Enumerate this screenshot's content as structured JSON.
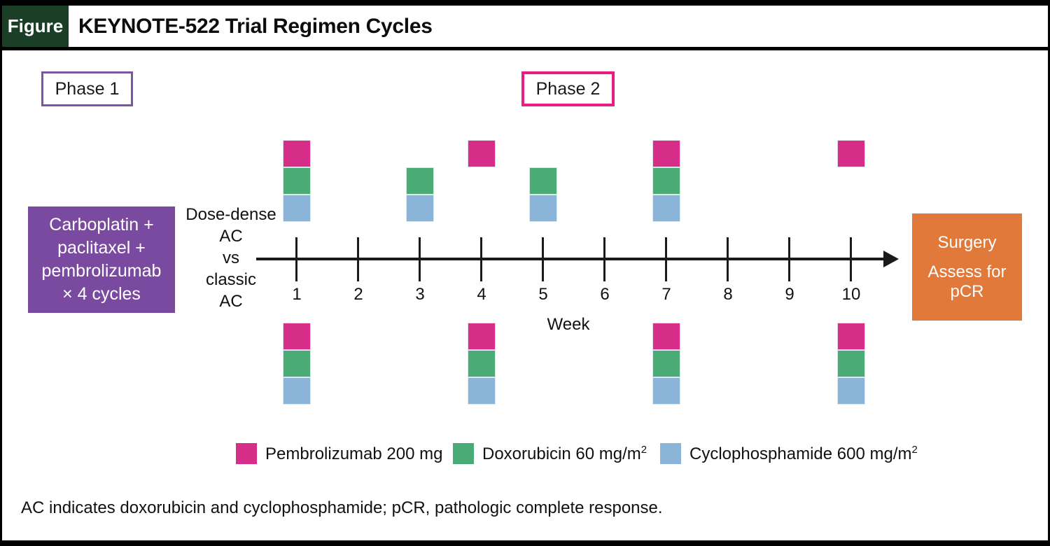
{
  "header": {
    "figure_label": "Figure",
    "title": "KEYNOTE-522 Trial Regimen Cycles"
  },
  "phases": {
    "phase1": "Phase 1",
    "phase2": "Phase 2"
  },
  "pre_phase_box": {
    "lines": [
      "Carboplatin +",
      "paclitaxel +",
      "pembrolizumab",
      "× 4 cycles"
    ]
  },
  "axis_annotation": {
    "lines": [
      "Dose-dense",
      "AC",
      "vs",
      "classic",
      "AC"
    ]
  },
  "timeline": {
    "weeks": [
      "1",
      "2",
      "3",
      "4",
      "5",
      "6",
      "7",
      "8",
      "9",
      "10"
    ],
    "axis_title": "Week"
  },
  "schedule": {
    "drug_order": [
      "pembrolizumab",
      "doxorubicin",
      "cyclophosphamide"
    ],
    "dose_dense": [
      {
        "week": 1,
        "drugs": [
          "pembrolizumab",
          "doxorubicin",
          "cyclophosphamide"
        ]
      },
      {
        "week": 3,
        "drugs": [
          "doxorubicin",
          "cyclophosphamide"
        ]
      },
      {
        "week": 4,
        "drugs": [
          "pembrolizumab"
        ]
      },
      {
        "week": 5,
        "drugs": [
          "doxorubicin",
          "cyclophosphamide"
        ]
      },
      {
        "week": 7,
        "drugs": [
          "pembrolizumab",
          "doxorubicin",
          "cyclophosphamide"
        ]
      },
      {
        "week": 10,
        "drugs": [
          "pembrolizumab"
        ]
      }
    ],
    "classic": [
      {
        "week": 1,
        "drugs": [
          "pembrolizumab",
          "doxorubicin",
          "cyclophosphamide"
        ]
      },
      {
        "week": 4,
        "drugs": [
          "pembrolizumab",
          "doxorubicin",
          "cyclophosphamide"
        ]
      },
      {
        "week": 7,
        "drugs": [
          "pembrolizumab",
          "doxorubicin",
          "cyclophosphamide"
        ]
      },
      {
        "week": 10,
        "drugs": [
          "pembrolizumab",
          "doxorubicin",
          "cyclophosphamide"
        ]
      }
    ]
  },
  "post_box": {
    "line1": "Surgery",
    "line2": "Assess for pCR"
  },
  "legend": {
    "items": [
      {
        "drug": "pembrolizumab",
        "label": "Pembrolizumab 200 mg",
        "sup": ""
      },
      {
        "drug": "doxorubicin",
        "label": "Doxorubicin 60 mg/m",
        "sup": "2"
      },
      {
        "drug": "cyclophosphamide",
        "label": "Cyclophosphamide 600 mg/m",
        "sup": "2"
      }
    ]
  },
  "footnote": "AC indicates doxorubicin and cyclophosphamide; pCR, pathologic complete response.",
  "colors": {
    "pembrolizumab": "#d52d88",
    "doxorubicin": "#4bab77",
    "cyclophosphamide": "#8ab4d8",
    "phase1_border": "#7d55a4",
    "phase2_border": "#ec1c86",
    "pre_phase_box_bg": "#7a4aa0",
    "post_box_bg": "#e0793a",
    "figure_badge_bg": "#1b3e26"
  }
}
